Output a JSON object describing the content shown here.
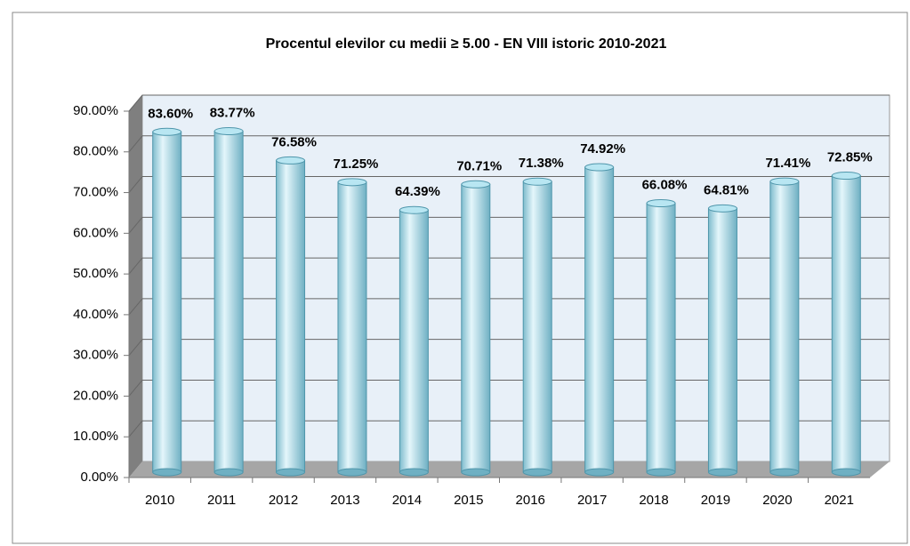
{
  "chart_data": {
    "type": "bar",
    "title": "Procentul elevilor cu medii ≥ 5.00 -  EN  VIII istoric 2010-2021",
    "categories": [
      "2010",
      "2011",
      "2012",
      "2013",
      "2014",
      "2015",
      "2016",
      "2017",
      "2018",
      "2019",
      "2020",
      "2021"
    ],
    "values": [
      83.6,
      83.77,
      76.58,
      71.25,
      64.39,
      70.71,
      71.38,
      74.92,
      66.08,
      64.81,
      71.41,
      72.85
    ],
    "value_labels": [
      "83.60%",
      "83.77%",
      "76.58%",
      "71.25%",
      "64.39%",
      "70.71%",
      "71.38%",
      "74.92%",
      "66.08%",
      "64.81%",
      "71.41%",
      "72.85%"
    ],
    "color": "#a8dcea",
    "ylim": [
      0,
      90
    ],
    "yticks": [
      {
        "value": 0,
        "label": "0.00%"
      },
      {
        "value": 10,
        "label": "10.00%"
      },
      {
        "value": 20,
        "label": "20.00%"
      },
      {
        "value": 30,
        "label": "30.00%"
      },
      {
        "value": 40,
        "label": "40.00%"
      },
      {
        "value": 50,
        "label": "50.00%"
      },
      {
        "value": 60,
        "label": "60.00%"
      },
      {
        "value": 70,
        "label": "70.00%"
      },
      {
        "value": 80,
        "label": "80.00%"
      },
      {
        "value": 90,
        "label": "90.00%"
      }
    ],
    "grid": true
  }
}
